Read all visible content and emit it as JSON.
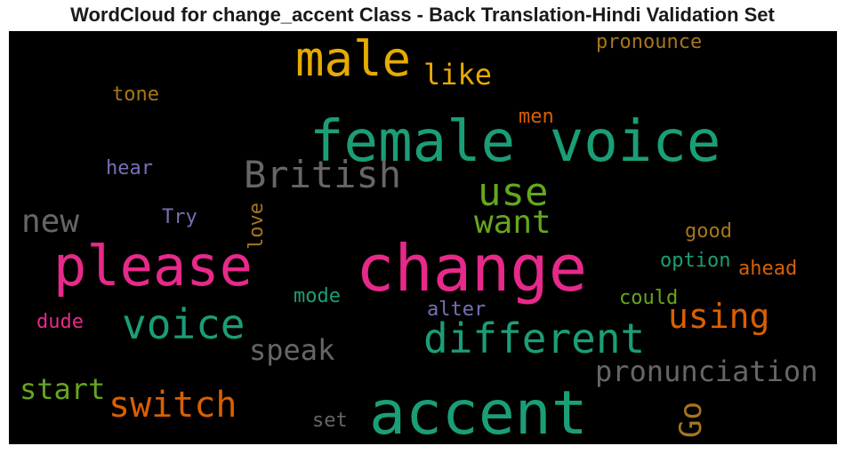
{
  "chart_data": {
    "type": "wordcloud",
    "title": "WordCloud for change_accent Class - Back Translation-Hindi Validation Set",
    "background": "#000000",
    "words": [
      {
        "text": "female voice",
        "color": "#1b9e77"
      },
      {
        "text": "change",
        "color": "#e7298a"
      },
      {
        "text": "accent",
        "color": "#1b9e77"
      },
      {
        "text": "please",
        "color": "#e7298a"
      },
      {
        "text": "male",
        "color": "#e6ab02"
      },
      {
        "text": "different",
        "color": "#1b9e77"
      },
      {
        "text": "voice",
        "color": "#1b9e77"
      },
      {
        "text": "British",
        "color": "#666666"
      },
      {
        "text": "use",
        "color": "#66a61e"
      },
      {
        "text": "switch",
        "color": "#d95f02"
      },
      {
        "text": "pronunciation",
        "color": "#666666"
      },
      {
        "text": "want",
        "color": "#66a61e"
      },
      {
        "text": "using",
        "color": "#d95f02"
      },
      {
        "text": "new",
        "color": "#666666"
      },
      {
        "text": "start",
        "color": "#66a61e"
      },
      {
        "text": "speak",
        "color": "#666666"
      },
      {
        "text": "like",
        "color": "#e6ab02"
      },
      {
        "text": "Go",
        "color": "#a6761d"
      },
      {
        "text": "pronounce",
        "color": "#a6761d"
      },
      {
        "text": "tone",
        "color": "#a6761d"
      },
      {
        "text": "men",
        "color": "#d95f02"
      },
      {
        "text": "hear",
        "color": "#7570b3"
      },
      {
        "text": "Try",
        "color": "#7570b3"
      },
      {
        "text": "love",
        "color": "#a6761d"
      },
      {
        "text": "good",
        "color": "#a6761d"
      },
      {
        "text": "option",
        "color": "#1b9e77"
      },
      {
        "text": "ahead",
        "color": "#d95f02"
      },
      {
        "text": "mode",
        "color": "#1b9e77"
      },
      {
        "text": "could",
        "color": "#66a61e"
      },
      {
        "text": "alter",
        "color": "#7570b3"
      },
      {
        "text": "dude",
        "color": "#e7298a"
      },
      {
        "text": "set",
        "color": "#666666"
      }
    ]
  }
}
